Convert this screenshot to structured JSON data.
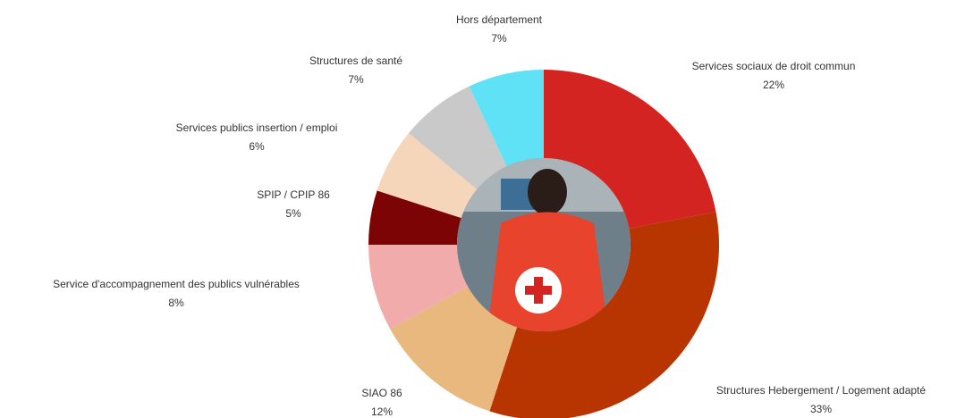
{
  "chart_data": {
    "type": "donut",
    "categories": [
      "Services sociaux de droit commun",
      "Structures Hebergement / Logement adapté",
      "SIAO 86",
      "Service d'accompagnement des publics vulnérables",
      "SPIP / CPIP 86",
      "Services publics insertion / emploi",
      "Structures de santé",
      "Hors département"
    ],
    "values": [
      22,
      33,
      12,
      8,
      5,
      6,
      7,
      7
    ],
    "value_labels": [
      "22%",
      "33%",
      "12%",
      "8%",
      "5%",
      "6%",
      "7%",
      "7%"
    ],
    "colors": [
      "#d42422",
      "#b83400",
      "#e8b87e",
      "#f2abab",
      "#7c0404",
      "#f6d6bb",
      "#c9c9c9",
      "#5fe1f6"
    ]
  }
}
